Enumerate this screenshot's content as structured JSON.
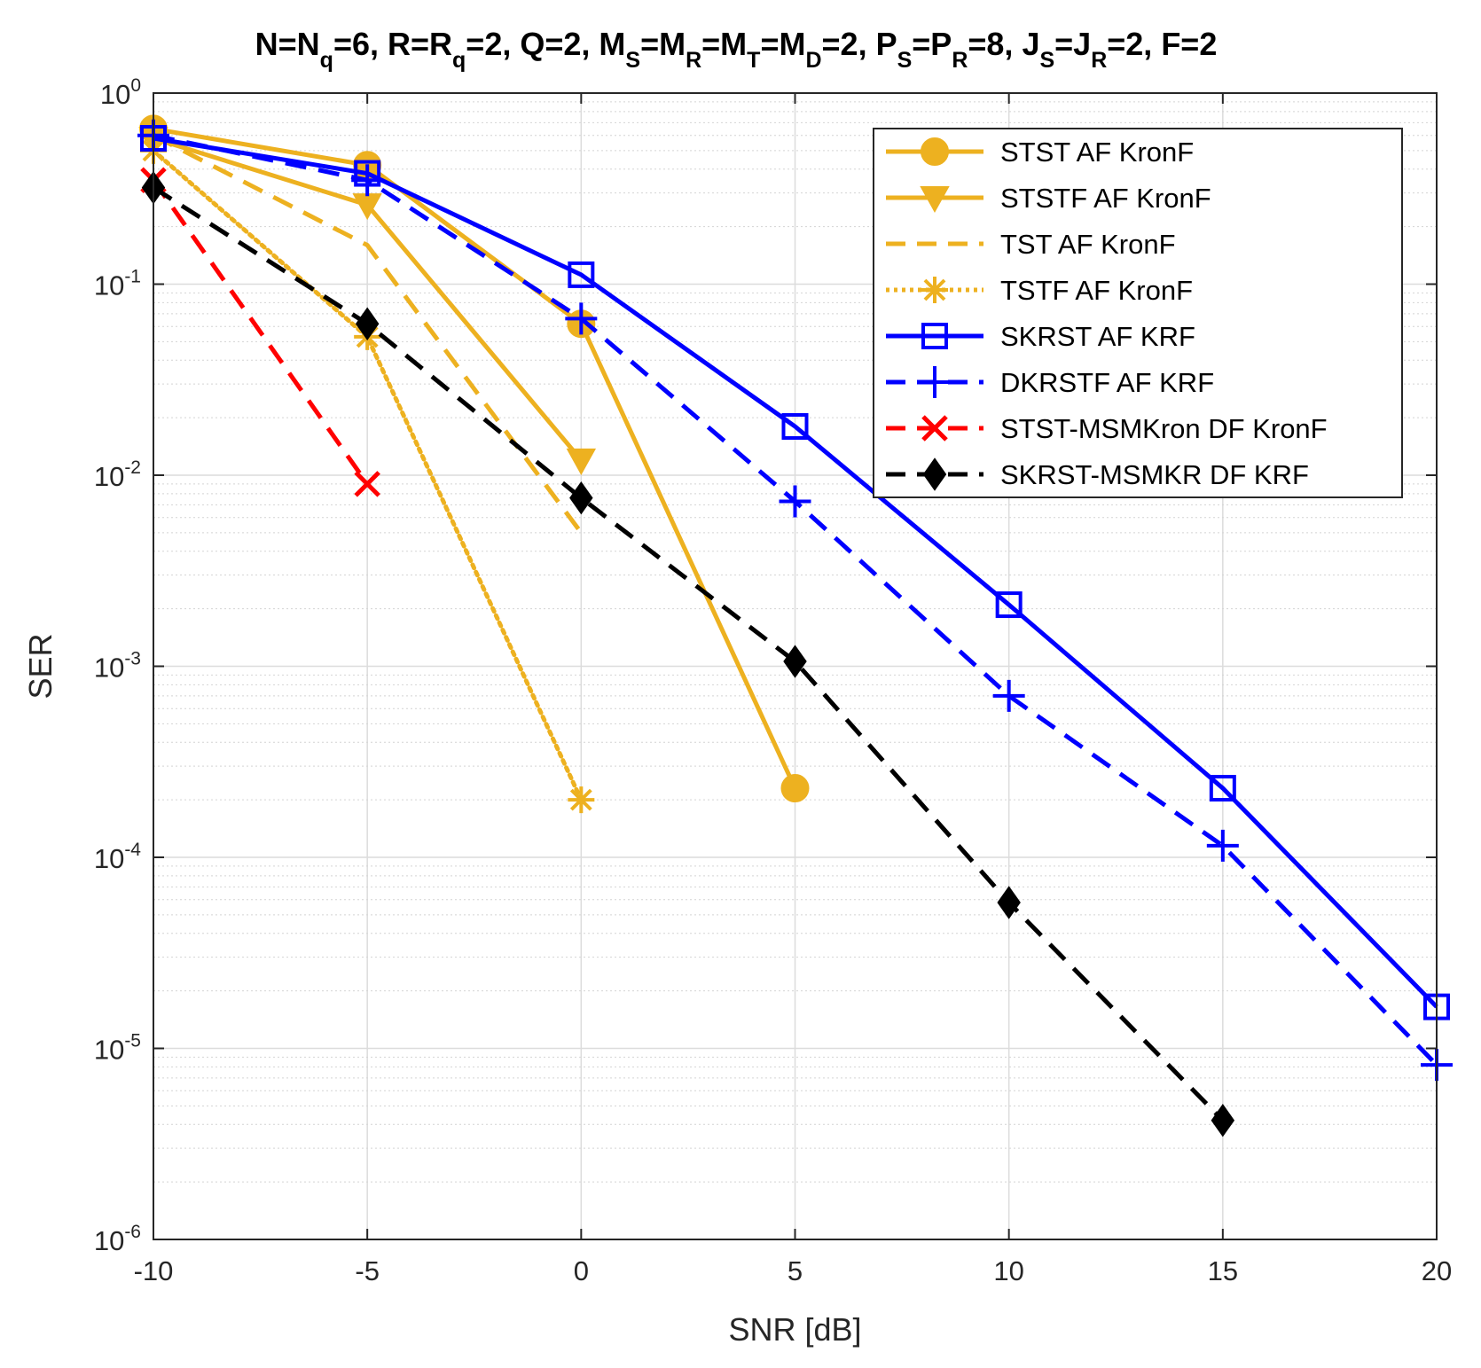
{
  "chart_data": {
    "type": "line",
    "title_parts": [
      {
        "t": "N=N",
        "s": "n"
      },
      {
        "t": "q",
        "s": "sub"
      },
      {
        "t": "=6,  R=R",
        "s": "n"
      },
      {
        "t": "q",
        "s": "sub"
      },
      {
        "t": "=2,  Q=2,  M",
        "s": "n"
      },
      {
        "t": "S",
        "s": "sub"
      },
      {
        "t": "=M",
        "s": "n"
      },
      {
        "t": "R",
        "s": "sub"
      },
      {
        "t": "=M",
        "s": "n"
      },
      {
        "t": "T",
        "s": "sub"
      },
      {
        "t": "=M",
        "s": "n"
      },
      {
        "t": "D",
        "s": "sub"
      },
      {
        "t": "=2,  P",
        "s": "n"
      },
      {
        "t": "S",
        "s": "sub"
      },
      {
        "t": "=P",
        "s": "n"
      },
      {
        "t": "R",
        "s": "sub"
      },
      {
        "t": "=8,  J",
        "s": "n"
      },
      {
        "t": "S",
        "s": "sub"
      },
      {
        "t": "=J",
        "s": "n"
      },
      {
        "t": "R",
        "s": "sub"
      },
      {
        "t": "=2,  F=2",
        "s": "n"
      }
    ],
    "xlabel": "SNR [dB]",
    "ylabel": "SER",
    "xlim": [
      -10,
      20
    ],
    "ylim": [
      1e-06,
      1
    ],
    "yscale": "log",
    "xticks": [
      -10,
      -5,
      0,
      5,
      10,
      15,
      20
    ],
    "xtick_labels": [
      "-10",
      "-5",
      "0",
      "5",
      "10",
      "15",
      "20"
    ],
    "yticks": [
      {
        "value": 1,
        "base": "10",
        "exp": "0"
      },
      {
        "value": 0.1,
        "base": "10",
        "exp": "-1"
      },
      {
        "value": 0.01,
        "base": "10",
        "exp": "-2"
      },
      {
        "value": 0.001,
        "base": "10",
        "exp": "-3"
      },
      {
        "value": 0.0001,
        "base": "10",
        "exp": "-4"
      },
      {
        "value": 1e-05,
        "base": "10",
        "exp": "-5"
      },
      {
        "value": 1e-06,
        "base": "10",
        "exp": "-6"
      }
    ],
    "grid": true,
    "minor_grid": true,
    "legend_position": "top-right",
    "series": [
      {
        "name": "STST AF KronF",
        "color": "#EDB120",
        "linestyle": "solid",
        "marker": "circle",
        "x": [
          -10,
          -5,
          0,
          5
        ],
        "y": [
          0.65,
          0.42,
          0.062,
          0.00023
        ]
      },
      {
        "name": "STSTF AF KronF",
        "color": "#EDB120",
        "linestyle": "solid",
        "marker": "triangle-down",
        "x": [
          -10,
          -5,
          0
        ],
        "y": [
          0.58,
          0.26,
          0.012
        ]
      },
      {
        "name": "TST AF KronF",
        "color": "#EDB120",
        "linestyle": "dashed",
        "marker": "none",
        "x": [
          -10,
          -5,
          0
        ],
        "y": [
          0.6,
          0.16,
          0.005
        ]
      },
      {
        "name": "TSTF AF KronF",
        "color": "#EDB120",
        "linestyle": "dotted",
        "marker": "asterisk",
        "x": [
          -10,
          -5,
          0
        ],
        "y": [
          0.5,
          0.053,
          0.0002
        ]
      },
      {
        "name": "SKRST AF KRF",
        "color": "#0000FF",
        "linestyle": "solid",
        "marker": "square",
        "x": [
          -10,
          -5,
          0,
          5,
          10,
          15,
          20
        ],
        "y": [
          0.58,
          0.38,
          0.112,
          0.018,
          0.0021,
          0.00023,
          1.65e-05
        ]
      },
      {
        "name": "DKRSTF AF KRF",
        "color": "#0000FF",
        "linestyle": "dashed",
        "marker": "plus",
        "x": [
          -10,
          -5,
          0,
          5,
          10,
          15,
          20
        ],
        "y": [
          0.6,
          0.35,
          0.066,
          0.0073,
          0.0007,
          0.000115,
          8.2e-06
        ]
      },
      {
        "name": "STST-MSMKron DF KronF",
        "color": "#FF0000",
        "linestyle": "dashed",
        "marker": "x",
        "x": [
          -10,
          -5
        ],
        "y": [
          0.35,
          0.009
        ]
      },
      {
        "name": "SKRST-MSMKR DF KRF",
        "color": "#000000",
        "linestyle": "dashed",
        "marker": "diamond",
        "x": [
          -10,
          -5,
          0,
          5,
          10,
          15
        ],
        "y": [
          0.32,
          0.062,
          0.0076,
          0.00106,
          5.8e-05,
          4.2e-06
        ]
      }
    ]
  }
}
